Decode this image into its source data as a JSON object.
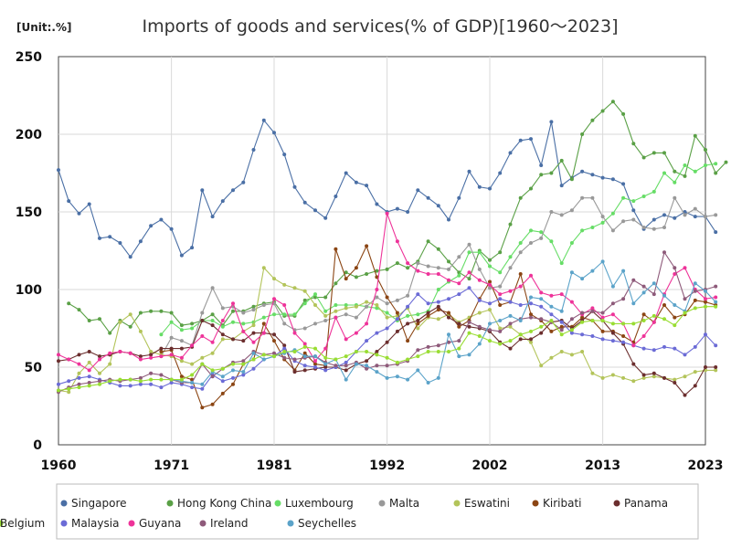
{
  "chart_data": {
    "type": "line",
    "title": "Imports of goods and services(% of GDP)[1960～2023]",
    "unit_label": "[Unit:.%]",
    "xlabel": "",
    "ylabel": "",
    "xlim": [
      1960,
      2023
    ],
    "ylim": [
      0,
      250
    ],
    "x_ticks": [
      1960,
      1971,
      1981,
      1992,
      2002,
      2013,
      2023
    ],
    "y_ticks": [
      0,
      50,
      100,
      150,
      200,
      250
    ],
    "grid": true,
    "legend_position": "bottom",
    "series": [
      {
        "name": "Singapore",
        "color": "#4a6fa5",
        "start": 1960,
        "values": [
          177,
          157,
          149,
          155,
          133,
          134,
          130,
          121,
          131,
          141,
          145,
          139,
          122,
          127,
          164,
          147,
          157,
          164,
          169,
          190,
          209,
          201,
          187,
          166,
          156,
          151,
          146,
          160,
          175,
          169,
          167,
          155,
          150,
          152,
          150,
          164,
          159,
          154,
          145,
          159,
          176,
          166,
          165,
          175,
          188,
          196,
          197,
          180,
          208,
          167,
          172,
          176,
          174,
          172,
          171,
          168,
          151,
          139,
          145,
          148,
          146,
          150,
          147,
          147,
          137
        ]
      },
      {
        "name": "Hong Kong China",
        "color": "#5aa046",
        "start": 1961,
        "values": [
          91,
          87,
          80,
          81,
          72,
          80,
          76,
          85,
          86,
          86,
          85,
          77,
          78,
          80,
          84,
          77,
          86,
          86,
          89,
          91,
          92,
          83,
          83,
          93,
          95,
          95,
          104,
          111,
          108,
          110,
          112,
          113,
          117,
          114,
          118,
          131,
          126,
          118,
          111,
          107,
          125,
          119,
          124,
          142,
          159,
          165,
          174,
          175,
          183,
          171,
          200,
          209,
          215,
          221,
          213,
          194,
          185,
          188,
          188,
          176,
          173,
          199,
          190,
          175,
          182
        ]
      },
      {
        "name": "Luxembourg",
        "color": "#66dd66",
        "start": 1970,
        "values": [
          71,
          79,
          74,
          75,
          80,
          80,
          76,
          79,
          78,
          79,
          82,
          84,
          84,
          84,
          91,
          97,
          86,
          90,
          90,
          90,
          89,
          88,
          85,
          80,
          83,
          84,
          86,
          100,
          105,
          109,
          124,
          124,
          115,
          111,
          121,
          130,
          138,
          137,
          131,
          117,
          130,
          138,
          140,
          143,
          149,
          159,
          157,
          160,
          163,
          175,
          169,
          180,
          176,
          180,
          181
        ]
      },
      {
        "name": "Malta",
        "color": "#999999",
        "start": 1970,
        "values": [
          57,
          69,
          67,
          64,
          85,
          101,
          88,
          89,
          85,
          87,
          90,
          91,
          78,
          74,
          75,
          78,
          80,
          82,
          84,
          82,
          89,
          95,
          91,
          93,
          96,
          117,
          115,
          114,
          113,
          121,
          129,
          113,
          101,
          102,
          114,
          124,
          130,
          133,
          150,
          148,
          151,
          159,
          159,
          147,
          138,
          144,
          145,
          140,
          139,
          140,
          159,
          148,
          152,
          147,
          148
        ]
      },
      {
        "name": "Eswatini",
        "color": "#b3c45a",
        "start": 1960,
        "values": [
          35,
          34,
          46,
          53,
          46,
          52,
          79,
          84,
          73,
          60,
          58,
          57,
          54,
          52,
          56,
          59,
          68,
          68,
          73,
          77,
          114,
          107,
          103,
          101,
          99,
          90,
          83,
          86,
          88,
          89,
          92,
          90,
          82,
          83,
          88,
          75,
          82,
          81,
          84,
          79,
          82,
          85,
          87,
          75,
          76,
          71,
          66,
          51,
          56,
          60,
          58,
          60,
          46,
          43,
          45,
          43,
          41,
          43,
          44,
          43,
          42,
          44,
          47,
          48,
          48
        ]
      },
      {
        "name": "Kiribati",
        "color": "#8b4513",
        "start": 1970,
        "values": [
          60,
          61,
          44,
          42,
          24,
          26,
          33,
          39,
          52,
          55,
          78,
          67,
          55,
          48,
          59,
          52,
          51,
          126,
          107,
          114,
          128,
          108,
          95,
          85,
          67,
          78,
          83,
          87,
          85,
          76,
          80,
          94,
          105,
          90,
          92,
          110,
          84,
          80,
          73,
          76,
          76,
          82,
          80,
          73,
          73,
          70,
          66,
          84,
          79,
          90,
          82,
          84,
          93,
          92,
          90
        ]
      },
      {
        "name": "Panama",
        "color": "#6b2e2e",
        "start": 1960,
        "values": [
          54,
          55,
          58,
          60,
          57,
          58,
          60,
          59,
          57,
          58,
          62,
          62,
          62,
          63,
          80,
          77,
          71,
          68,
          67,
          72,
          72,
          71,
          64,
          47,
          48,
          49,
          50,
          50,
          48,
          52,
          54,
          60,
          66,
          73,
          78,
          80,
          85,
          89,
          82,
          78,
          76,
          75,
          73,
          66,
          62,
          68,
          68,
          72,
          79,
          80,
          75,
          80,
          86,
          80,
          72,
          65,
          52,
          45,
          46,
          43,
          40,
          32,
          38,
          50,
          50
        ]
      },
      {
        "name": "Malaysia",
        "color": "#6b6bd6",
        "start": 1960,
        "values": [
          39,
          41,
          43,
          44,
          42,
          40,
          38,
          38,
          39,
          39,
          37,
          40,
          39,
          37,
          36,
          45,
          41,
          43,
          45,
          49,
          55,
          57,
          62,
          54,
          51,
          50,
          48,
          50,
          53,
          60,
          67,
          72,
          75,
          81,
          89,
          97,
          91,
          92,
          94,
          97,
          101,
          93,
          91,
          94,
          92,
          90,
          91,
          89,
          84,
          79,
          72,
          71,
          70,
          68,
          67,
          66,
          64,
          62,
          61,
          63,
          62,
          58,
          63,
          71,
          64
        ]
      },
      {
        "name": "Guyana",
        "color": "#ee3399",
        "start": 1960,
        "values": [
          58,
          55,
          52,
          48,
          55,
          59,
          60,
          59,
          55,
          56,
          57,
          58,
          56,
          64,
          70,
          66,
          80,
          91,
          73,
          66,
          72,
          94,
          90,
          72,
          65,
          54,
          62,
          82,
          68,
          72,
          78,
          100,
          149,
          131,
          117,
          112,
          110,
          110,
          106,
          104,
          111,
          106,
          103,
          97,
          99,
          102,
          109,
          98,
          96,
          97,
          92,
          84,
          88,
          82,
          84,
          78,
          64,
          70,
          79,
          97,
          110,
          114,
          100,
          94,
          95
        ]
      },
      {
        "name": "Ireland",
        "color": "#8e5a7a",
        "start": 1960,
        "values": [
          34,
          37,
          39,
          40,
          41,
          42,
          41,
          42,
          43,
          46,
          45,
          42,
          40,
          40,
          52,
          44,
          49,
          53,
          54,
          60,
          58,
          59,
          56,
          55,
          56,
          57,
          53,
          51,
          51,
          53,
          49,
          51,
          51,
          52,
          54,
          61,
          63,
          64,
          66,
          67,
          79,
          76,
          74,
          73,
          78,
          81,
          82,
          81,
          79,
          74,
          81,
          85,
          86,
          85,
          91,
          94,
          106,
          102,
          97,
          124,
          114,
          94,
          99,
          100,
          102
        ]
      },
      {
        "name": "Seychelles",
        "color": "#5ba3c9",
        "start": 1971,
        "values": [
          42,
          41,
          40,
          39,
          47,
          44,
          48,
          47,
          59,
          55,
          57,
          59,
          61,
          57,
          57,
          52,
          55,
          42,
          52,
          51,
          47,
          43,
          44,
          42,
          48,
          40,
          43,
          71,
          57,
          58,
          65,
          78,
          80,
          83,
          80,
          95,
          94,
          89,
          86,
          111,
          107,
          112,
          118,
          102,
          112,
          91,
          98,
          104,
          96,
          90,
          86,
          104,
          99,
          92
        ]
      },
      {
        "name": "Belgium",
        "color": "#99dd33",
        "start": 1960,
        "values": [
          35,
          36,
          37,
          38,
          39,
          41,
          42,
          42,
          41,
          42,
          42,
          42,
          42,
          45,
          52,
          48,
          49,
          52,
          52,
          55,
          58,
          57,
          60,
          60,
          63,
          62,
          56,
          55,
          57,
          60,
          60,
          58,
          56,
          53,
          55,
          57,
          60,
          60,
          60,
          62,
          72,
          70,
          67,
          65,
          67,
          71,
          73,
          76,
          80,
          71,
          74,
          79,
          80,
          80,
          78,
          78,
          78,
          80,
          83,
          81,
          77,
          85,
          88,
          89,
          89
        ]
      }
    ]
  }
}
